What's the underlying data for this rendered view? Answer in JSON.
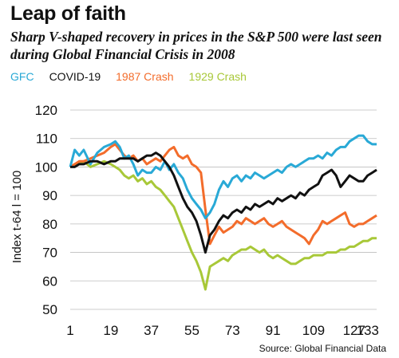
{
  "title": "Leap of faith",
  "subtitle": "Sharp V-shaped recovery in prices in the S&P 500 were last seen during Global Financial Crisis in 2008",
  "source": "Source: Global Financial Data",
  "chart_data": {
    "type": "line",
    "ylabel": "Index t-64 l = 100",
    "xlabel": "",
    "xlim": [
      1,
      137
    ],
    "ylim": [
      50,
      120
    ],
    "x_ticks": [
      "1",
      "19",
      "37",
      "55",
      "73",
      "91",
      "109",
      "127",
      "133"
    ],
    "y_ticks": [
      "50",
      "60",
      "70",
      "80",
      "90",
      "100",
      "110",
      "120"
    ],
    "grid": "horizontal",
    "legend_position": "top-left",
    "series": [
      {
        "name": "GFC",
        "color": "#29a9d6",
        "points": [
          [
            1,
            100
          ],
          [
            3,
            106
          ],
          [
            5,
            104
          ],
          [
            7,
            106
          ],
          [
            10,
            101
          ],
          [
            13,
            105
          ],
          [
            16,
            107
          ],
          [
            19,
            108
          ],
          [
            21,
            109
          ],
          [
            23,
            107
          ],
          [
            25,
            103
          ],
          [
            27,
            104
          ],
          [
            29,
            101
          ],
          [
            31,
            97
          ],
          [
            33,
            99
          ],
          [
            35,
            98
          ],
          [
            37,
            98
          ],
          [
            39,
            100
          ],
          [
            41,
            99
          ],
          [
            43,
            102
          ],
          [
            45,
            99
          ],
          [
            47,
            101
          ],
          [
            49,
            98
          ],
          [
            51,
            96
          ],
          [
            53,
            92
          ],
          [
            55,
            89
          ],
          [
            57,
            87
          ],
          [
            59,
            85
          ],
          [
            61,
            82
          ],
          [
            63,
            84
          ],
          [
            65,
            87
          ],
          [
            67,
            92
          ],
          [
            69,
            95
          ],
          [
            71,
            93
          ],
          [
            73,
            96
          ],
          [
            75,
            97
          ],
          [
            77,
            95
          ],
          [
            79,
            97
          ],
          [
            81,
            96
          ],
          [
            83,
            98
          ],
          [
            85,
            97
          ],
          [
            87,
            96
          ],
          [
            89,
            97
          ],
          [
            91,
            98
          ],
          [
            93,
            99
          ],
          [
            95,
            98
          ],
          [
            97,
            100
          ],
          [
            99,
            101
          ],
          [
            101,
            100
          ],
          [
            103,
            101
          ],
          [
            105,
            102
          ],
          [
            107,
            103
          ],
          [
            109,
            103
          ],
          [
            111,
            104
          ],
          [
            113,
            103
          ],
          [
            115,
            105
          ],
          [
            117,
            104
          ],
          [
            119,
            106
          ],
          [
            121,
            107
          ],
          [
            123,
            107
          ],
          [
            125,
            109
          ],
          [
            127,
            110
          ],
          [
            129,
            111
          ],
          [
            131,
            111
          ],
          [
            133,
            109
          ],
          [
            135,
            108
          ],
          [
            137,
            108
          ]
        ]
      },
      {
        "name": "COVID-19",
        "color": "#111111",
        "points": [
          [
            1,
            100
          ],
          [
            3,
            100
          ],
          [
            5,
            101
          ],
          [
            7,
            101
          ],
          [
            10,
            102
          ],
          [
            13,
            102
          ],
          [
            16,
            101
          ],
          [
            19,
            102
          ],
          [
            21,
            102
          ],
          [
            23,
            103
          ],
          [
            25,
            103
          ],
          [
            27,
            103
          ],
          [
            29,
            103
          ],
          [
            31,
            102
          ],
          [
            33,
            103
          ],
          [
            35,
            104
          ],
          [
            37,
            104
          ],
          [
            39,
            105
          ],
          [
            41,
            104
          ],
          [
            43,
            102
          ],
          [
            45,
            100
          ],
          [
            47,
            97
          ],
          [
            49,
            93
          ],
          [
            51,
            89
          ],
          [
            53,
            86
          ],
          [
            55,
            84
          ],
          [
            57,
            81
          ],
          [
            59,
            76
          ],
          [
            61,
            70
          ],
          [
            63,
            76
          ],
          [
            65,
            78
          ],
          [
            67,
            81
          ],
          [
            69,
            83
          ],
          [
            71,
            82
          ],
          [
            73,
            84
          ],
          [
            75,
            85
          ],
          [
            77,
            84
          ],
          [
            79,
            86
          ],
          [
            81,
            85
          ],
          [
            83,
            87
          ],
          [
            85,
            86
          ],
          [
            87,
            87
          ],
          [
            89,
            88
          ],
          [
            91,
            87
          ],
          [
            93,
            89
          ],
          [
            95,
            88
          ],
          [
            97,
            89
          ],
          [
            99,
            90
          ],
          [
            101,
            89
          ],
          [
            103,
            91
          ],
          [
            105,
            90
          ],
          [
            107,
            92
          ],
          [
            109,
            93
          ],
          [
            111,
            94
          ],
          [
            113,
            97
          ],
          [
            115,
            98
          ],
          [
            117,
            99
          ],
          [
            119,
            97
          ],
          [
            121,
            93
          ],
          [
            123,
            95
          ],
          [
            125,
            97
          ],
          [
            127,
            96
          ],
          [
            129,
            95
          ],
          [
            131,
            95
          ],
          [
            133,
            97
          ],
          [
            135,
            98
          ],
          [
            137,
            99
          ]
        ]
      },
      {
        "name": "1987 Crash",
        "color": "#f36c2b",
        "points": [
          [
            1,
            100
          ],
          [
            3,
            101
          ],
          [
            5,
            102
          ],
          [
            7,
            102
          ],
          [
            10,
            103
          ],
          [
            13,
            104
          ],
          [
            16,
            105
          ],
          [
            19,
            107
          ],
          [
            21,
            108
          ],
          [
            23,
            106
          ],
          [
            25,
            104
          ],
          [
            27,
            103
          ],
          [
            29,
            104
          ],
          [
            31,
            102
          ],
          [
            33,
            103
          ],
          [
            35,
            101
          ],
          [
            37,
            102
          ],
          [
            39,
            103
          ],
          [
            41,
            102
          ],
          [
            43,
            104
          ],
          [
            45,
            106
          ],
          [
            47,
            107
          ],
          [
            49,
            104
          ],
          [
            51,
            103
          ],
          [
            53,
            104
          ],
          [
            55,
            101
          ],
          [
            57,
            100
          ],
          [
            59,
            98
          ],
          [
            61,
            85
          ],
          [
            63,
            73
          ],
          [
            65,
            76
          ],
          [
            67,
            79
          ],
          [
            69,
            77
          ],
          [
            71,
            78
          ],
          [
            73,
            79
          ],
          [
            75,
            81
          ],
          [
            77,
            80
          ],
          [
            79,
            82
          ],
          [
            81,
            81
          ],
          [
            83,
            80
          ],
          [
            85,
            81
          ],
          [
            87,
            82
          ],
          [
            89,
            80
          ],
          [
            91,
            79
          ],
          [
            93,
            80
          ],
          [
            95,
            81
          ],
          [
            97,
            79
          ],
          [
            99,
            78
          ],
          [
            101,
            77
          ],
          [
            103,
            76
          ],
          [
            105,
            75
          ],
          [
            107,
            73
          ],
          [
            109,
            76
          ],
          [
            111,
            78
          ],
          [
            113,
            81
          ],
          [
            115,
            80
          ],
          [
            117,
            81
          ],
          [
            119,
            82
          ],
          [
            121,
            83
          ],
          [
            123,
            84
          ],
          [
            125,
            80
          ],
          [
            127,
            79
          ],
          [
            129,
            80
          ],
          [
            131,
            80
          ],
          [
            133,
            81
          ],
          [
            135,
            82
          ],
          [
            137,
            83
          ]
        ]
      },
      {
        "name": "1929 Crash",
        "color": "#a8c838",
        "points": [
          [
            1,
            100
          ],
          [
            3,
            101
          ],
          [
            5,
            101
          ],
          [
            7,
            102
          ],
          [
            10,
            100
          ],
          [
            13,
            101
          ],
          [
            16,
            102
          ],
          [
            19,
            101
          ],
          [
            21,
            100
          ],
          [
            23,
            99
          ],
          [
            25,
            97
          ],
          [
            27,
            96
          ],
          [
            29,
            97
          ],
          [
            31,
            95
          ],
          [
            33,
            96
          ],
          [
            35,
            94
          ],
          [
            37,
            95
          ],
          [
            39,
            93
          ],
          [
            41,
            92
          ],
          [
            43,
            90
          ],
          [
            45,
            88
          ],
          [
            47,
            86
          ],
          [
            49,
            82
          ],
          [
            51,
            78
          ],
          [
            53,
            74
          ],
          [
            55,
            70
          ],
          [
            57,
            67
          ],
          [
            59,
            63
          ],
          [
            61,
            57
          ],
          [
            63,
            65
          ],
          [
            65,
            66
          ],
          [
            67,
            67
          ],
          [
            69,
            68
          ],
          [
            71,
            67
          ],
          [
            73,
            69
          ],
          [
            75,
            70
          ],
          [
            77,
            71
          ],
          [
            79,
            71
          ],
          [
            81,
            72
          ],
          [
            83,
            71
          ],
          [
            85,
            70
          ],
          [
            87,
            71
          ],
          [
            89,
            69
          ],
          [
            91,
            68
          ],
          [
            93,
            69
          ],
          [
            95,
            68
          ],
          [
            97,
            67
          ],
          [
            99,
            66
          ],
          [
            101,
            66
          ],
          [
            103,
            67
          ],
          [
            105,
            68
          ],
          [
            107,
            68
          ],
          [
            109,
            69
          ],
          [
            111,
            69
          ],
          [
            113,
            69
          ],
          [
            115,
            70
          ],
          [
            117,
            70
          ],
          [
            119,
            70
          ],
          [
            121,
            71
          ],
          [
            123,
            71
          ],
          [
            125,
            72
          ],
          [
            127,
            72
          ],
          [
            129,
            73
          ],
          [
            131,
            74
          ],
          [
            133,
            74
          ],
          [
            135,
            75
          ],
          [
            137,
            75
          ]
        ]
      }
    ]
  }
}
